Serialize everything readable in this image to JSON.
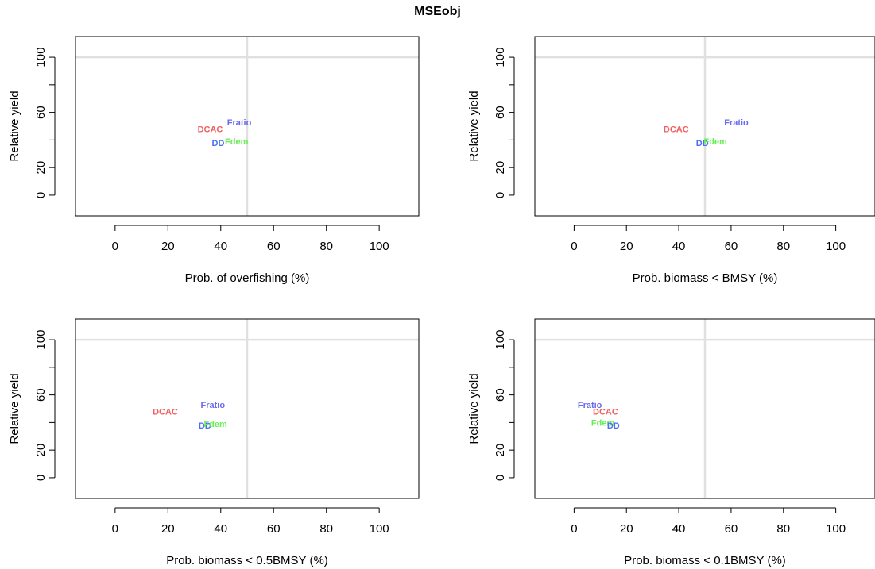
{
  "figure": {
    "title": "MSEobj"
  },
  "colors": {
    "DCAC": "#f06060",
    "Fratio": "#6a6af0",
    "DD": "#4b6ff0",
    "Fdem": "#66ee55",
    "refline": "#e0e0e0",
    "axis": "#000000"
  },
  "chart_data": [
    {
      "type": "scatter",
      "panel": "top-left",
      "xlabel": "Prob. of overfishing (%)",
      "ylabel": "Relative yield",
      "xlim": [
        -15,
        115
      ],
      "ylim": [
        -15,
        115
      ],
      "xticks": [
        0,
        20,
        40,
        60,
        80,
        100
      ],
      "yticks": [
        0,
        20,
        60,
        100
      ],
      "ref_lines": {
        "x": 50,
        "y": 100
      },
      "points": [
        {
          "label": "DCAC",
          "x": 36,
          "y": 48
        },
        {
          "label": "Fratio",
          "x": 47,
          "y": 53
        },
        {
          "label": "DD",
          "x": 39,
          "y": 38
        },
        {
          "label": "Fdem",
          "x": 46,
          "y": 39
        }
      ]
    },
    {
      "type": "scatter",
      "panel": "top-right",
      "xlabel": "Prob. biomass < BMSY (%)",
      "ylabel": "Relative yield",
      "xlim": [
        -15,
        115
      ],
      "ylim": [
        -15,
        115
      ],
      "xticks": [
        0,
        20,
        40,
        60,
        80,
        100
      ],
      "yticks": [
        0,
        20,
        60,
        100
      ],
      "ref_lines": {
        "x": 50,
        "y": 100
      },
      "points": [
        {
          "label": "DCAC",
          "x": 39,
          "y": 48
        },
        {
          "label": "Fratio",
          "x": 62,
          "y": 53
        },
        {
          "label": "DD",
          "x": 49,
          "y": 38
        },
        {
          "label": "Fdem",
          "x": 54,
          "y": 39
        }
      ]
    },
    {
      "type": "scatter",
      "panel": "bottom-left",
      "xlabel": "Prob. biomass < 0.5BMSY (%)",
      "ylabel": "Relative yield",
      "xlim": [
        -15,
        115
      ],
      "ylim": [
        -15,
        115
      ],
      "xticks": [
        0,
        20,
        40,
        60,
        80,
        100
      ],
      "yticks": [
        0,
        20,
        60,
        100
      ],
      "ref_lines": {
        "x": 50,
        "y": 100
      },
      "points": [
        {
          "label": "DCAC",
          "x": 19,
          "y": 48
        },
        {
          "label": "Fratio",
          "x": 37,
          "y": 53
        },
        {
          "label": "DD",
          "x": 34,
          "y": 38
        },
        {
          "label": "Fdem",
          "x": 38,
          "y": 39
        }
      ]
    },
    {
      "type": "scatter",
      "panel": "bottom-right",
      "xlabel": "Prob. biomass < 0.1BMSY (%)",
      "ylabel": "Relative yield",
      "xlim": [
        -15,
        115
      ],
      "ylim": [
        -15,
        115
      ],
      "xticks": [
        0,
        20,
        40,
        60,
        80,
        100
      ],
      "yticks": [
        0,
        20,
        60,
        100
      ],
      "ref_lines": {
        "x": 50,
        "y": 100
      },
      "points": [
        {
          "label": "Fratio",
          "x": 6,
          "y": 53
        },
        {
          "label": "DCAC",
          "x": 12,
          "y": 48
        },
        {
          "label": "Fdem",
          "x": 11,
          "y": 40
        },
        {
          "label": "DD",
          "x": 15,
          "y": 38
        }
      ]
    }
  ]
}
